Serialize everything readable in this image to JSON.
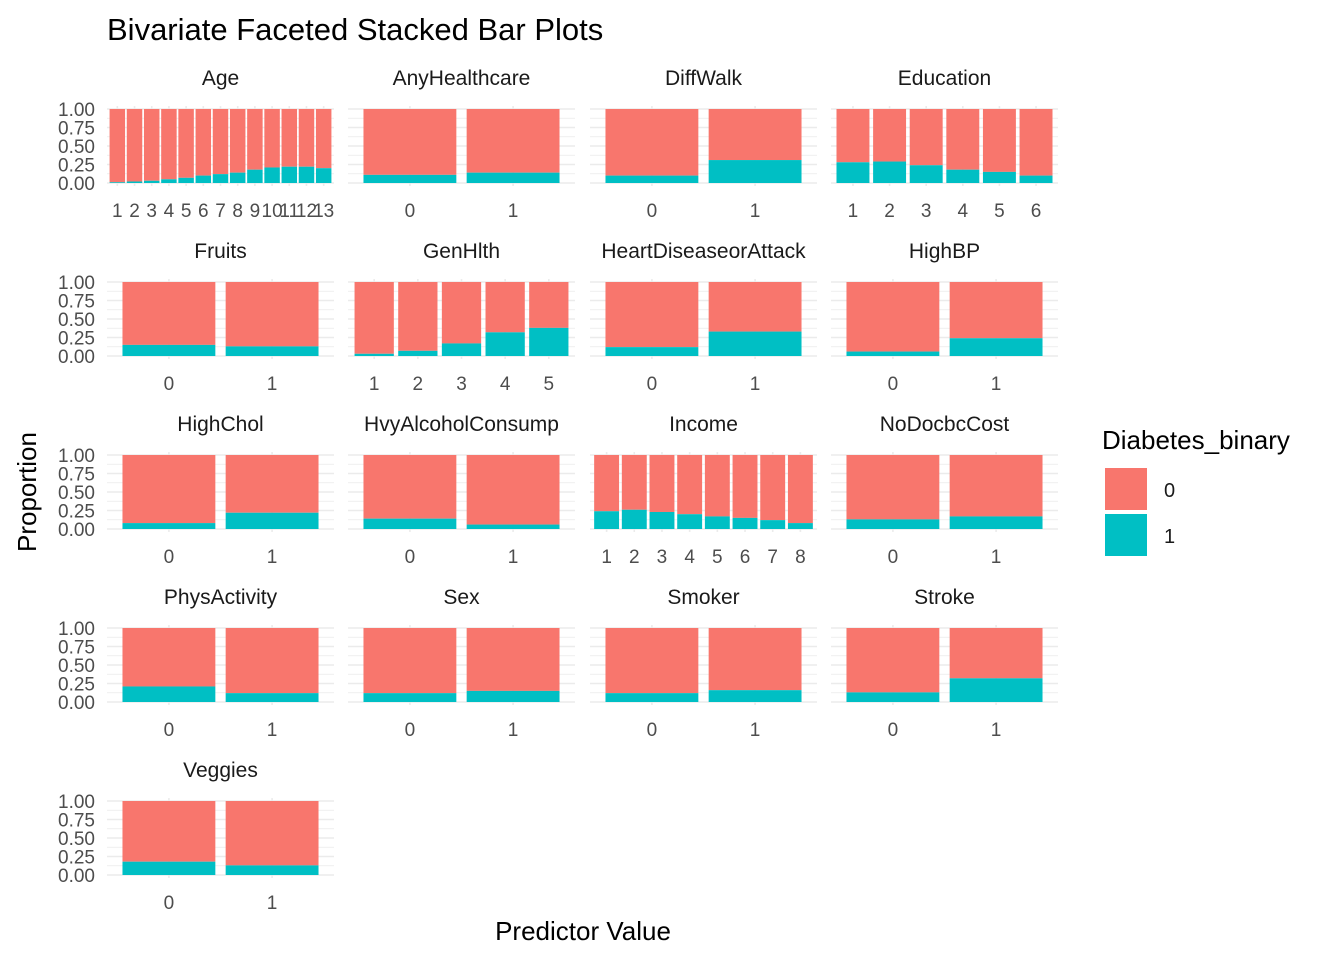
{
  "chart_data": {
    "type": "bar",
    "stacked": true,
    "title": "Bivariate Faceted Stacked Bar Plots",
    "xlabel": "Predictor Value",
    "ylabel": "Proportion",
    "ylim": [
      0,
      1
    ],
    "yticks": [
      "0.00",
      "0.25",
      "0.50",
      "0.75",
      "1.00"
    ],
    "legend": {
      "title": "Diabetes_binary",
      "position": "right",
      "entries": [
        {
          "label": "0",
          "color": "#F8766D"
        },
        {
          "label": "1",
          "color": "#00BFC4"
        }
      ]
    },
    "series_colors": {
      "0": "#F8766D",
      "1": "#00BFC4"
    },
    "facets": [
      {
        "name": "Age",
        "categories": [
          "1",
          "2",
          "3",
          "4",
          "5",
          "6",
          "7",
          "8",
          "9",
          "10",
          "11",
          "12",
          "13"
        ],
        "prop1": [
          0.01,
          0.02,
          0.03,
          0.05,
          0.07,
          0.1,
          0.12,
          0.14,
          0.18,
          0.21,
          0.22,
          0.22,
          0.2
        ]
      },
      {
        "name": "AnyHealthcare",
        "categories": [
          "0",
          "1"
        ],
        "prop1": [
          0.11,
          0.14
        ]
      },
      {
        "name": "DiffWalk",
        "categories": [
          "0",
          "1"
        ],
        "prop1": [
          0.1,
          0.31
        ]
      },
      {
        "name": "Education",
        "categories": [
          "1",
          "2",
          "3",
          "4",
          "5",
          "6"
        ],
        "prop1": [
          0.28,
          0.29,
          0.24,
          0.18,
          0.15,
          0.1
        ]
      },
      {
        "name": "Fruits",
        "categories": [
          "0",
          "1"
        ],
        "prop1": [
          0.15,
          0.13
        ]
      },
      {
        "name": "GenHlth",
        "categories": [
          "1",
          "2",
          "3",
          "4",
          "5"
        ],
        "prop1": [
          0.03,
          0.07,
          0.17,
          0.32,
          0.38
        ]
      },
      {
        "name": "HeartDiseaseorAttack",
        "categories": [
          "0",
          "1"
        ],
        "prop1": [
          0.12,
          0.33
        ]
      },
      {
        "name": "HighBP",
        "categories": [
          "0",
          "1"
        ],
        "prop1": [
          0.06,
          0.24
        ]
      },
      {
        "name": "HighChol",
        "categories": [
          "0",
          "1"
        ],
        "prop1": [
          0.08,
          0.22
        ]
      },
      {
        "name": "HvyAlcoholConsump",
        "categories": [
          "0",
          "1"
        ],
        "prop1": [
          0.14,
          0.06
        ]
      },
      {
        "name": "Income",
        "categories": [
          "1",
          "2",
          "3",
          "4",
          "5",
          "6",
          "7",
          "8"
        ],
        "prop1": [
          0.24,
          0.26,
          0.23,
          0.2,
          0.17,
          0.15,
          0.12,
          0.08
        ]
      },
      {
        "name": "NoDocbcCost",
        "categories": [
          "0",
          "1"
        ],
        "prop1": [
          0.13,
          0.17
        ]
      },
      {
        "name": "PhysActivity",
        "categories": [
          "0",
          "1"
        ],
        "prop1": [
          0.21,
          0.12
        ]
      },
      {
        "name": "Sex",
        "categories": [
          "0",
          "1"
        ],
        "prop1": [
          0.12,
          0.15
        ]
      },
      {
        "name": "Smoker",
        "categories": [
          "0",
          "1"
        ],
        "prop1": [
          0.12,
          0.16
        ]
      },
      {
        "name": "Stroke",
        "categories": [
          "0",
          "1"
        ],
        "prop1": [
          0.13,
          0.32
        ]
      },
      {
        "name": "Veggies",
        "categories": [
          "0",
          "1"
        ],
        "prop1": [
          0.18,
          0.13
        ]
      }
    ]
  }
}
